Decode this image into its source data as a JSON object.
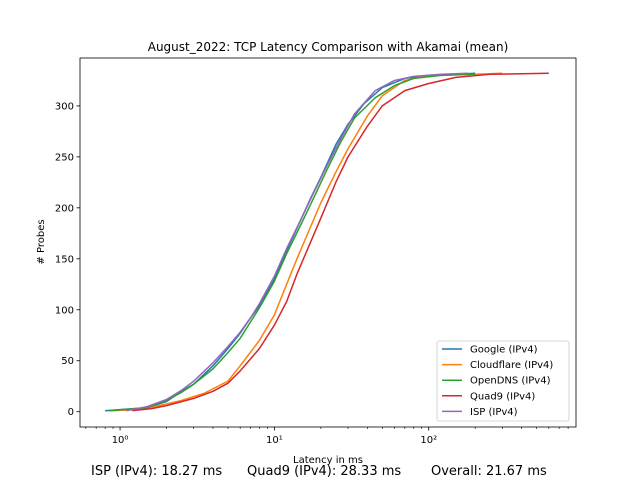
{
  "chart_data": {
    "type": "line",
    "title": "August_2022: TCP Latency Comparison with Akamai (mean)",
    "xlabel": "Latency in ms",
    "ylabel": "# Probes",
    "xscale": "log",
    "xlim": [
      0.55,
      900
    ],
    "ylim": [
      -15,
      347
    ],
    "x_ticks": [
      {
        "value": 1,
        "label": "10⁰"
      },
      {
        "value": 10,
        "label": "10¹"
      },
      {
        "value": 100,
        "label": "10²"
      }
    ],
    "y_ticks": [
      0,
      50,
      100,
      150,
      200,
      250,
      300
    ],
    "grid": false,
    "legend_position": "bottom-right",
    "series": [
      {
        "name": "Google (IPv4)",
        "color": "#1f77b4",
        "points": [
          [
            0.8,
            1
          ],
          [
            1.5,
            4
          ],
          [
            2,
            10
          ],
          [
            2.5,
            20
          ],
          [
            3,
            27
          ],
          [
            4,
            45
          ],
          [
            5,
            62
          ],
          [
            6,
            77
          ],
          [
            7,
            92
          ],
          [
            8,
            104
          ],
          [
            10,
            130
          ],
          [
            12,
            158
          ],
          [
            14,
            180
          ],
          [
            17,
            208
          ],
          [
            20,
            230
          ],
          [
            25,
            262
          ],
          [
            30,
            282
          ],
          [
            38,
            302
          ],
          [
            50,
            318
          ],
          [
            70,
            327
          ],
          [
            100,
            330
          ],
          [
            150,
            331
          ],
          [
            200,
            332
          ]
        ]
      },
      {
        "name": "Cloudflare (IPv4)",
        "color": "#ff7f0e",
        "points": [
          [
            0.85,
            1
          ],
          [
            1.3,
            2
          ],
          [
            1.8,
            6
          ],
          [
            2.5,
            11
          ],
          [
            3.5,
            18
          ],
          [
            5,
            30
          ],
          [
            6,
            45
          ],
          [
            8,
            70
          ],
          [
            10,
            95
          ],
          [
            12,
            125
          ],
          [
            14,
            150
          ],
          [
            17,
            180
          ],
          [
            20,
            205
          ],
          [
            25,
            235
          ],
          [
            30,
            258
          ],
          [
            40,
            290
          ],
          [
            50,
            310
          ],
          [
            70,
            325
          ],
          [
            100,
            330
          ],
          [
            200,
            331
          ],
          [
            300,
            332
          ]
        ]
      },
      {
        "name": "OpenDNS (IPv4)",
        "color": "#2ca02c",
        "points": [
          [
            0.85,
            1
          ],
          [
            1.5,
            4
          ],
          [
            2,
            11
          ],
          [
            2.5,
            19
          ],
          [
            3,
            27
          ],
          [
            4,
            42
          ],
          [
            5,
            58
          ],
          [
            6,
            72
          ],
          [
            7,
            88
          ],
          [
            8,
            102
          ],
          [
            10,
            128
          ],
          [
            12,
            155
          ],
          [
            15,
            185
          ],
          [
            18,
            210
          ],
          [
            22,
            238
          ],
          [
            27,
            265
          ],
          [
            33,
            288
          ],
          [
            45,
            308
          ],
          [
            60,
            320
          ],
          [
            80,
            327
          ],
          [
            120,
            330
          ],
          [
            200,
            331
          ]
        ]
      },
      {
        "name": "Quad9 (IPv4)",
        "color": "#d62728",
        "points": [
          [
            1.2,
            1
          ],
          [
            1.6,
            3
          ],
          [
            2,
            6
          ],
          [
            3,
            13
          ],
          [
            4,
            20
          ],
          [
            5,
            28
          ],
          [
            6,
            40
          ],
          [
            8,
            62
          ],
          [
            10,
            85
          ],
          [
            12,
            108
          ],
          [
            14,
            135
          ],
          [
            17,
            165
          ],
          [
            20,
            190
          ],
          [
            25,
            225
          ],
          [
            30,
            250
          ],
          [
            40,
            280
          ],
          [
            50,
            300
          ],
          [
            70,
            315
          ],
          [
            100,
            322
          ],
          [
            150,
            328
          ],
          [
            250,
            331
          ],
          [
            600,
            332
          ]
        ]
      },
      {
        "name": "ISP (IPv4)",
        "color": "#9467bd",
        "points": [
          [
            1.1,
            1
          ],
          [
            1.5,
            5
          ],
          [
            2,
            12
          ],
          [
            2.5,
            21
          ],
          [
            3,
            30
          ],
          [
            4,
            48
          ],
          [
            5,
            64
          ],
          [
            6,
            78
          ],
          [
            7,
            92
          ],
          [
            8,
            106
          ],
          [
            10,
            133
          ],
          [
            12,
            160
          ],
          [
            15,
            190
          ],
          [
            18,
            215
          ],
          [
            22,
            242
          ],
          [
            27,
            268
          ],
          [
            33,
            292
          ],
          [
            45,
            315
          ],
          [
            60,
            325
          ],
          [
            80,
            329
          ],
          [
            120,
            331
          ],
          [
            180,
            332
          ]
        ]
      }
    ]
  },
  "footer": {
    "isp": "ISP (IPv4): 18.27 ms",
    "quad9": "Quad9 (IPv4): 28.33 ms",
    "overall": "Overall: 21.67 ms"
  }
}
